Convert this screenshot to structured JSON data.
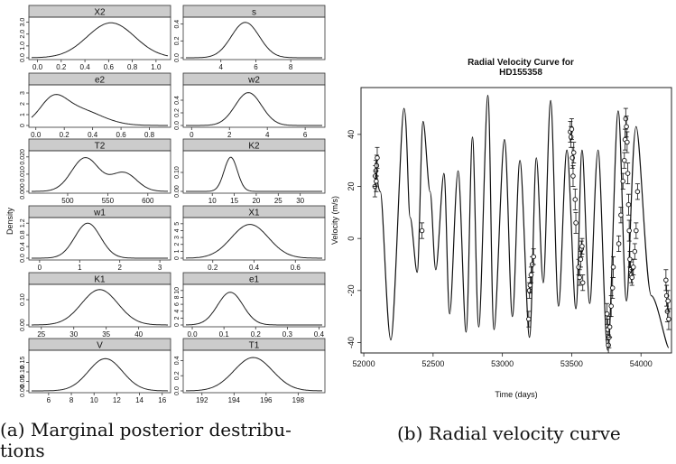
{
  "figure": {
    "caption_a_line1": "(a) Marginal posterior destribu-",
    "caption_a_line2": "tions",
    "caption_b": "(b) Radial velocity curve"
  },
  "chart_data": [
    {
      "type": "line",
      "name": "marginal-posteriors",
      "ylabel": "Density",
      "panels": [
        {
          "title": "X2",
          "xlim": [
            -0.05,
            1.1
          ],
          "xticks": [
            "0.0",
            "0.2",
            "0.4",
            "0.6",
            "0.8",
            "1.0"
          ],
          "xtick_values": [
            0,
            0.2,
            0.4,
            0.6,
            0.8,
            1.0
          ],
          "ylim": [
            0,
            3.2
          ],
          "yticks": [
            "0.0",
            "1.0",
            "2.0",
            "3.0"
          ],
          "ytick_values": [
            0,
            1,
            2,
            3
          ],
          "shape": [
            [
              0.62,
              0.2,
              2.95
            ]
          ]
        },
        {
          "title": "s",
          "xlim": [
            2.0,
            9.8
          ],
          "xticks": [
            "4",
            "6",
            "8"
          ],
          "xtick_values": [
            4,
            6,
            8
          ],
          "ylim": [
            0,
            0.45
          ],
          "yticks": [
            "0.0",
            "0.2",
            "0.4"
          ],
          "ytick_values": [
            0,
            0.2,
            0.4
          ],
          "shape": [
            [
              5.4,
              0.8,
              0.42
            ]
          ]
        },
        {
          "title": "e2",
          "xlim": [
            -0.03,
            0.93
          ],
          "xticks": [
            "0.0",
            "0.2",
            "0.4",
            "0.6",
            "0.8"
          ],
          "xtick_values": [
            0,
            0.2,
            0.4,
            0.6,
            0.8
          ],
          "ylim": [
            0,
            3.5
          ],
          "yticks": [
            "0",
            "1",
            "2",
            "3"
          ],
          "ytick_values": [
            0,
            1,
            2,
            3
          ],
          "shape": [
            [
              0.12,
              0.09,
              1.8
            ],
            [
              0.28,
              0.17,
              1.55
            ]
          ]
        },
        {
          "title": "w2",
          "xlim": [
            -0.3,
            6.9
          ],
          "xticks": [
            "0",
            "2",
            "4",
            "6"
          ],
          "xtick_values": [
            0,
            2,
            4,
            6
          ],
          "ylim": [
            0,
            0.6
          ],
          "yticks": [
            "0.0",
            "0.2",
            "0.4"
          ],
          "ytick_values": [
            0,
            0.2,
            0.4
          ],
          "shape": [
            [
              3.0,
              0.7,
              0.52
            ]
          ]
        },
        {
          "title": "T2",
          "xlim": [
            455,
            625
          ],
          "xticks": [
            "500",
            "550",
            "600"
          ],
          "xtick_values": [
            500,
            550,
            600
          ],
          "ylim": [
            0,
            0.022
          ],
          "yticks": [
            "0.000",
            "0.010",
            "0.020"
          ],
          "ytick_values": [
            0,
            0.01,
            0.02
          ],
          "shape": [
            [
              522,
              17,
              0.0195
            ],
            [
              570,
              16,
              0.0108
            ]
          ]
        },
        {
          "title": "K2",
          "xlim": [
            4,
            35
          ],
          "xticks": [
            "10",
            "15",
            "20",
            "25",
            "30"
          ],
          "xtick_values": [
            10,
            15,
            20,
            25,
            30
          ],
          "ylim": [
            0,
            0.2
          ],
          "yticks": [
            "0.00",
            "0.10"
          ],
          "ytick_values": [
            0,
            0.1
          ],
          "shape": [
            [
              14.2,
              1.5,
              0.18
            ]
          ]
        },
        {
          "title": "w1",
          "xlim": [
            -0.2,
            3.2
          ],
          "xticks": [
            "0",
            "1",
            "2",
            "3"
          ],
          "xtick_values": [
            0,
            1,
            2,
            3
          ],
          "ylim": [
            0,
            1.3
          ],
          "yticks": [
            "0.0",
            "0.4",
            "0.8",
            "1.2"
          ],
          "ytick_values": [
            0,
            0.4,
            0.8,
            1.2
          ],
          "shape": [
            [
              1.2,
              0.32,
              1.2
            ]
          ]
        },
        {
          "title": "X1",
          "xlim": [
            0.07,
            0.73
          ],
          "xticks": [
            "0.2",
            "0.4",
            "0.6"
          ],
          "xtick_values": [
            0.2,
            0.4,
            0.6
          ],
          "ylim": [
            0,
            5.5
          ],
          "yticks": [
            "0",
            "1",
            "2",
            "3",
            "4",
            "5"
          ],
          "ytick_values": [
            0,
            1,
            2,
            3,
            4,
            5
          ],
          "shape": [
            [
              0.38,
              0.09,
              4.9
            ]
          ]
        },
        {
          "title": "K1",
          "xlim": [
            23.5,
            44.5
          ],
          "xticks": [
            "25",
            "30",
            "35",
            "40"
          ],
          "xtick_values": [
            25,
            30,
            35,
            40
          ],
          "ylim": [
            0,
            0.15
          ],
          "yticks": [
            "0.00",
            "0.10"
          ],
          "ytick_values": [
            0,
            0.1
          ],
          "shape": [
            [
              34,
              2.8,
              0.14
            ]
          ]
        },
        {
          "title": "e1",
          "xlim": [
            -0.02,
            0.41
          ],
          "xticks": [
            "0.0",
            "0.1",
            "0.2",
            "0.3",
            "0.4"
          ],
          "xtick_values": [
            0,
            0.1,
            0.2,
            0.3,
            0.4
          ],
          "ylim": [
            0,
            11
          ],
          "yticks": [
            "0",
            "2",
            "4",
            "6",
            "8",
            "10"
          ],
          "ytick_values": [
            0,
            2,
            4,
            6,
            8,
            10
          ],
          "shape": [
            [
              0.12,
              0.04,
              9.5
            ]
          ]
        },
        {
          "title": "V",
          "xlim": [
            4.5,
            16.5
          ],
          "xticks": [
            "6",
            "8",
            "10",
            "12",
            "14",
            "16"
          ],
          "xtick_values": [
            6,
            8,
            10,
            12,
            14,
            16
          ],
          "ylim": [
            0,
            0.2
          ],
          "yticks": [
            "0.00",
            "0.05",
            "0.10",
            "0.15"
          ],
          "ytick_values": [
            0,
            0.05,
            0.1,
            0.15
          ],
          "shape": [
            [
              11,
              1.5,
              0.17
            ]
          ]
        },
        {
          "title": "T1",
          "xlim": [
            191,
            199.5
          ],
          "xticks": [
            "192",
            "194",
            "196",
            "198"
          ],
          "xtick_values": [
            192,
            194,
            196,
            198
          ],
          "ylim": [
            0,
            0.5
          ],
          "yticks": [
            "0.0",
            "0.2",
            "0.4"
          ],
          "ytick_values": [
            0,
            0.2,
            0.4
          ],
          "shape": [
            [
              195.2,
              1.2,
              0.44
            ]
          ]
        }
      ]
    },
    {
      "type": "line",
      "name": "radial-velocity-curve",
      "title_line1": "Radial Velocity Curve for",
      "title_line2": "HD155358",
      "xlabel": "Time (days)",
      "ylabel": "Velocity (m/s)",
      "xlim": [
        51980,
        54220
      ],
      "ylim": [
        -44,
        58
      ],
      "xticks": [
        "52000",
        "52500",
        "53000",
        "53500",
        "54000"
      ],
      "xtick_values": [
        52000,
        52500,
        53000,
        53500,
        54000
      ],
      "yticks": [
        "-40",
        "-20",
        "0",
        "20",
        "40"
      ],
      "ytick_values": [
        -40,
        -20,
        0,
        20,
        40
      ],
      "model_curve": {
        "x": [
          52080,
          52120,
          52195,
          52290,
          52335,
          52385,
          52428,
          52478,
          52520,
          52578,
          52620,
          52680,
          52738,
          52784,
          52830,
          52895,
          52940,
          53015,
          53072,
          53127,
          53195,
          53245,
          53295,
          53348,
          53405,
          53465,
          53530,
          53575,
          53630,
          53690,
          53760,
          53835,
          53895,
          53965,
          54075,
          54200
        ],
        "y": [
          29,
          18,
          -39,
          50,
          8,
          -13,
          45,
          18,
          -12,
          25,
          -29,
          26,
          -36,
          39,
          -34,
          55,
          -35,
          38,
          -30,
          30,
          -38,
          31,
          -17,
          53,
          -26,
          34,
          -27,
          34,
          -25,
          34,
          -43,
          49,
          -24,
          43,
          -22,
          -42
        ]
      },
      "observations": {
        "x": [
          52080,
          52083,
          52087,
          52090,
          52093,
          52097,
          52420,
          53190,
          53195,
          53200,
          53207,
          53215,
          53225,
          53490,
          53495,
          53500,
          53505,
          53510,
          53515,
          53525,
          53530,
          53550,
          53557,
          53565,
          53570,
          53575,
          53580,
          53755,
          53760,
          53765,
          53770,
          53775,
          53785,
          53795,
          53800,
          53840,
          53855,
          53870,
          53880,
          53885,
          53890,
          53895,
          53900,
          53905,
          53910,
          53915,
          53920,
          53925,
          53930,
          53935,
          53945,
          53955,
          53965,
          53975,
          54180,
          54185,
          54190,
          54195,
          54200
        ],
        "y": [
          20,
          24,
          26,
          22,
          28,
          31,
          3,
          -31,
          -20,
          -18,
          -14,
          -10,
          -7,
          41,
          39,
          42,
          31,
          24,
          33,
          15,
          6,
          -11,
          -15,
          -8,
          -4,
          -3,
          -17,
          -29,
          -35,
          -41,
          -38,
          -34,
          -26,
          -19,
          -11,
          -2,
          9,
          22,
          30,
          38,
          46,
          43,
          37,
          25,
          13,
          3,
          -8,
          -12,
          -14,
          -15,
          -11,
          -5,
          3,
          18,
          -16,
          -22,
          -28,
          -24,
          -31
        ],
        "err": [
          4,
          4,
          4,
          4,
          4,
          4,
          3,
          3,
          3,
          3,
          3,
          3,
          3,
          4,
          4,
          4,
          4,
          4,
          4,
          4,
          4,
          3,
          3,
          3,
          3,
          3,
          3,
          4,
          4,
          4,
          4,
          4,
          4,
          4,
          4,
          3,
          3,
          3,
          3,
          4,
          4,
          4,
          4,
          4,
          4,
          4,
          3,
          3,
          3,
          3,
          3,
          3,
          3,
          3,
          4,
          4,
          4,
          4,
          4
        ]
      }
    }
  ]
}
